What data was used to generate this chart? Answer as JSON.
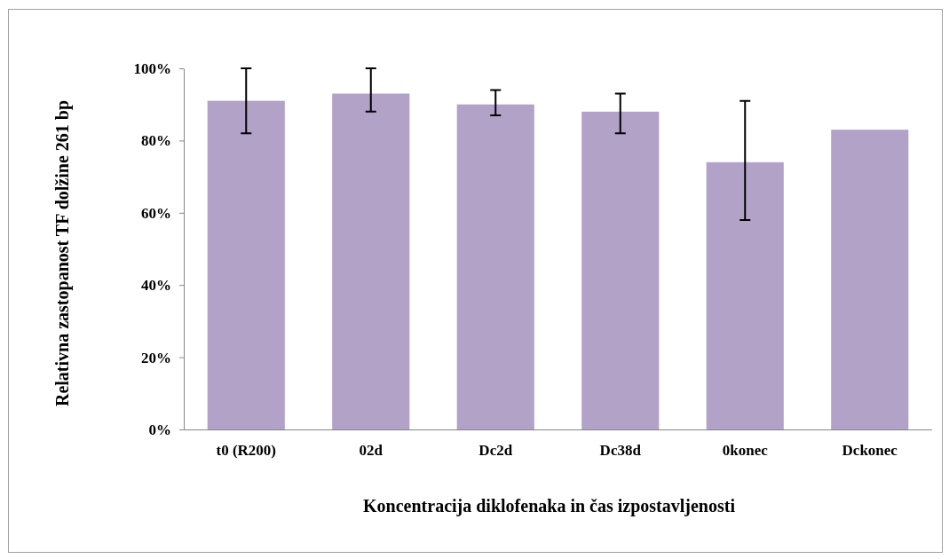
{
  "chart_data": {
    "type": "bar",
    "xlabel": "Koncentracija diklofenaka in čas izpostavljenosti",
    "ylabel": "Relativna zastopanost TF dolžine 261 bp",
    "categories": [
      "t0 (R200)",
      "02d",
      "Dc2d",
      "Dc38d",
      "0konec",
      "Dckonec"
    ],
    "values": [
      91,
      93,
      90,
      88,
      74,
      83
    ],
    "errors": [
      [
        82,
        100
      ],
      [
        88,
        100
      ],
      [
        87,
        94
      ],
      [
        82,
        93
      ],
      [
        58,
        91
      ],
      null
    ],
    "color": "#b2a2c7",
    "ylim": [
      0,
      100
    ],
    "yticks": [
      {
        "value": 0,
        "label": "0%"
      },
      {
        "value": 20,
        "label": "20%"
      },
      {
        "value": 40,
        "label": "40%"
      },
      {
        "value": 60,
        "label": "60%"
      },
      {
        "value": 80,
        "label": "80%"
      },
      {
        "value": 100,
        "label": "100%"
      }
    ],
    "grid": false
  }
}
